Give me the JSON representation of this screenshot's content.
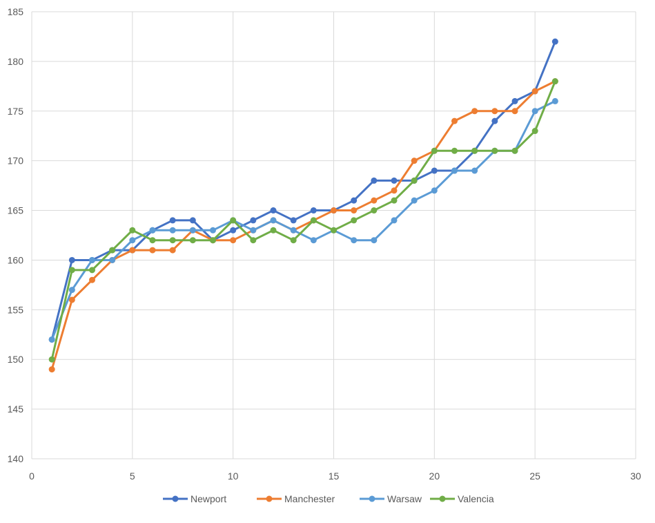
{
  "chart_data": {
    "type": "line",
    "x": [
      1,
      2,
      3,
      4,
      5,
      6,
      7,
      8,
      9,
      10,
      11,
      12,
      13,
      14,
      15,
      16,
      17,
      18,
      19,
      20,
      21,
      22,
      23,
      24,
      25,
      26
    ],
    "series": [
      {
        "name": "Newport",
        "color": "#4472C4",
        "values": [
          152,
          160,
          160,
          161,
          161,
          163,
          164,
          164,
          162,
          163,
          164,
          165,
          164,
          165,
          165,
          166,
          168,
          168,
          168,
          169,
          169,
          171,
          174,
          176,
          177,
          182
        ]
      },
      {
        "name": "Manchester",
        "color": "#ED7D31",
        "values": [
          149,
          156,
          158,
          160,
          161,
          161,
          161,
          163,
          162,
          162,
          163,
          164,
          163,
          164,
          165,
          165,
          166,
          167,
          170,
          171,
          174,
          175,
          175,
          175,
          177,
          178
        ]
      },
      {
        "name": "Warsaw",
        "color": "#5B9BD5",
        "values": [
          152,
          157,
          160,
          160,
          162,
          163,
          163,
          163,
          163,
          164,
          163,
          164,
          163,
          162,
          163,
          162,
          162,
          164,
          166,
          167,
          169,
          169,
          171,
          171,
          175,
          176
        ]
      },
      {
        "name": "Valencia",
        "color": "#70AD47",
        "values": [
          150,
          159,
          159,
          161,
          163,
          162,
          162,
          162,
          162,
          164,
          162,
          163,
          162,
          164,
          163,
          164,
          165,
          166,
          168,
          171,
          171,
          171,
          171,
          171,
          173,
          178
        ]
      }
    ],
    "xlim": [
      0,
      30
    ],
    "ylim": [
      140,
      185
    ],
    "xticks": [
      "0",
      "5",
      "10",
      "15",
      "20",
      "25",
      "30"
    ],
    "yticks": [
      "140",
      "145",
      "150",
      "155",
      "160",
      "165",
      "170",
      "175",
      "180",
      "185"
    ],
    "grid": true,
    "legend_position": "bottom"
  }
}
